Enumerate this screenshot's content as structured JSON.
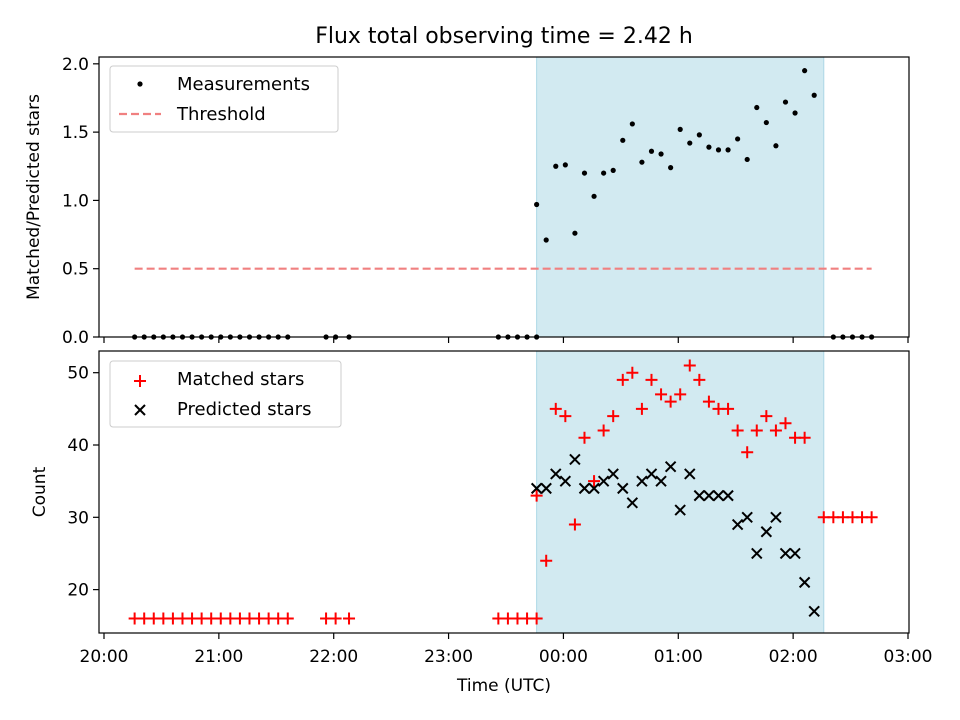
{
  "figure": {
    "title": "Flux total observing time = 2.42 h",
    "xlabel": "Time (UTC)"
  },
  "colors": {
    "measurement": "#000000",
    "threshold": "#f08080",
    "matched": "#ff0000",
    "predicted": "#000000",
    "shade": "#add8e6"
  },
  "chart_data": [
    {
      "type": "scatter",
      "ylabel": "Matched/Predicted stars",
      "ylim": [
        0,
        2.05
      ],
      "yticks": [
        0.0,
        0.5,
        1.0,
        1.5,
        2.0
      ],
      "xlim": [
        "20:00",
        "03:00"
      ],
      "grid": false,
      "legend": "top-left",
      "shaded_region": {
        "from": "23:46",
        "to": "02:16"
      },
      "series": [
        {
          "name": "Measurements",
          "marker": "dot",
          "points": [
            [
              "20:16",
              0
            ],
            [
              "20:21",
              0
            ],
            [
              "20:26",
              0
            ],
            [
              "20:31",
              0
            ],
            [
              "20:36",
              0
            ],
            [
              "20:41",
              0
            ],
            [
              "20:46",
              0
            ],
            [
              "20:51",
              0
            ],
            [
              "20:56",
              0
            ],
            [
              "21:01",
              0
            ],
            [
              "21:06",
              0
            ],
            [
              "21:11",
              0
            ],
            [
              "21:16",
              0
            ],
            [
              "21:21",
              0
            ],
            [
              "21:26",
              0
            ],
            [
              "21:31",
              0
            ],
            [
              "21:36",
              0
            ],
            [
              "21:56",
              0
            ],
            [
              "22:01",
              0
            ],
            [
              "22:08",
              0
            ],
            [
              "23:26",
              0
            ],
            [
              "23:31",
              0
            ],
            [
              "23:36",
              0
            ],
            [
              "23:41",
              0
            ],
            [
              "23:46",
              0
            ],
            [
              "23:46",
              0.97
            ],
            [
              "23:51",
              0.71
            ],
            [
              "23:56",
              1.25
            ],
            [
              "00:01",
              1.26
            ],
            [
              "00:06",
              0.76
            ],
            [
              "00:11",
              1.2
            ],
            [
              "00:16",
              1.03
            ],
            [
              "00:21",
              1.2
            ],
            [
              "00:26",
              1.22
            ],
            [
              "00:31",
              1.44
            ],
            [
              "00:36",
              1.56
            ],
            [
              "00:41",
              1.28
            ],
            [
              "00:46",
              1.36
            ],
            [
              "00:51",
              1.34
            ],
            [
              "00:56",
              1.24
            ],
            [
              "01:01",
              1.52
            ],
            [
              "01:06",
              1.42
            ],
            [
              "01:11",
              1.48
            ],
            [
              "01:16",
              1.39
            ],
            [
              "01:21",
              1.37
            ],
            [
              "01:26",
              1.37
            ],
            [
              "01:31",
              1.45
            ],
            [
              "01:36",
              1.3
            ],
            [
              "01:41",
              1.68
            ],
            [
              "01:46",
              1.57
            ],
            [
              "01:51",
              1.4
            ],
            [
              "01:56",
              1.72
            ],
            [
              "02:01",
              1.64
            ],
            [
              "02:06",
              1.95
            ],
            [
              "02:11",
              1.77
            ],
            [
              "02:21",
              0
            ],
            [
              "02:26",
              0
            ],
            [
              "02:31",
              0
            ],
            [
              "02:36",
              0
            ],
            [
              "02:41",
              0
            ]
          ]
        },
        {
          "name": "Threshold",
          "style": "dashed-line",
          "points": [
            [
              "20:16",
              0.5
            ],
            [
              "02:41",
              0.5
            ]
          ]
        }
      ]
    },
    {
      "type": "scatter",
      "ylabel": "Count",
      "ylim": [
        14,
        53
      ],
      "yticks": [
        20,
        30,
        40,
        50
      ],
      "xlim": [
        "20:00",
        "03:00"
      ],
      "xticks": [
        "20:00",
        "21:00",
        "22:00",
        "23:00",
        "00:00",
        "01:00",
        "02:00",
        "03:00"
      ],
      "grid": false,
      "legend": "top-left",
      "shaded_region": {
        "from": "23:46",
        "to": "02:16"
      },
      "series": [
        {
          "name": "Matched stars",
          "marker": "plus",
          "points": [
            [
              "20:16",
              16
            ],
            [
              "20:21",
              16
            ],
            [
              "20:26",
              16
            ],
            [
              "20:31",
              16
            ],
            [
              "20:36",
              16
            ],
            [
              "20:41",
              16
            ],
            [
              "20:46",
              16
            ],
            [
              "20:51",
              16
            ],
            [
              "20:56",
              16
            ],
            [
              "21:01",
              16
            ],
            [
              "21:06",
              16
            ],
            [
              "21:11",
              16
            ],
            [
              "21:16",
              16
            ],
            [
              "21:21",
              16
            ],
            [
              "21:26",
              16
            ],
            [
              "21:31",
              16
            ],
            [
              "21:36",
              16
            ],
            [
              "21:56",
              16
            ],
            [
              "22:01",
              16
            ],
            [
              "22:08",
              16
            ],
            [
              "23:26",
              16
            ],
            [
              "23:31",
              16
            ],
            [
              "23:36",
              16
            ],
            [
              "23:41",
              16
            ],
            [
              "23:46",
              16
            ],
            [
              "23:46",
              33
            ],
            [
              "23:51",
              24
            ],
            [
              "23:56",
              45
            ],
            [
              "00:01",
              44
            ],
            [
              "00:06",
              29
            ],
            [
              "00:11",
              41
            ],
            [
              "00:16",
              35
            ],
            [
              "00:21",
              42
            ],
            [
              "00:26",
              44
            ],
            [
              "00:31",
              49
            ],
            [
              "00:36",
              50
            ],
            [
              "00:41",
              45
            ],
            [
              "00:46",
              49
            ],
            [
              "00:51",
              47
            ],
            [
              "00:56",
              46
            ],
            [
              "01:01",
              47
            ],
            [
              "01:06",
              51
            ],
            [
              "01:11",
              49
            ],
            [
              "01:16",
              46
            ],
            [
              "01:21",
              45
            ],
            [
              "01:26",
              45
            ],
            [
              "01:31",
              42
            ],
            [
              "01:36",
              39
            ],
            [
              "01:41",
              42
            ],
            [
              "01:46",
              44
            ],
            [
              "01:51",
              42
            ],
            [
              "01:56",
              43
            ],
            [
              "02:01",
              41
            ],
            [
              "02:06",
              41
            ],
            [
              "02:16",
              30
            ],
            [
              "02:21",
              30
            ],
            [
              "02:26",
              30
            ],
            [
              "02:31",
              30
            ],
            [
              "02:36",
              30
            ],
            [
              "02:41",
              30
            ]
          ]
        },
        {
          "name": "Predicted stars",
          "marker": "x",
          "points": [
            [
              "23:46",
              34
            ],
            [
              "23:51",
              34
            ],
            [
              "23:56",
              36
            ],
            [
              "00:01",
              35
            ],
            [
              "00:06",
              38
            ],
            [
              "00:11",
              34
            ],
            [
              "00:16",
              34
            ],
            [
              "00:21",
              35
            ],
            [
              "00:26",
              36
            ],
            [
              "00:31",
              34
            ],
            [
              "00:36",
              32
            ],
            [
              "00:41",
              35
            ],
            [
              "00:46",
              36
            ],
            [
              "00:51",
              35
            ],
            [
              "00:56",
              37
            ],
            [
              "01:01",
              31
            ],
            [
              "01:06",
              36
            ],
            [
              "01:11",
              33
            ],
            [
              "01:16",
              33
            ],
            [
              "01:21",
              33
            ],
            [
              "01:26",
              33
            ],
            [
              "01:31",
              29
            ],
            [
              "01:36",
              30
            ],
            [
              "01:41",
              25
            ],
            [
              "01:46",
              28
            ],
            [
              "01:51",
              30
            ],
            [
              "01:56",
              25
            ],
            [
              "02:01",
              25
            ],
            [
              "02:06",
              21
            ],
            [
              "02:11",
              17
            ]
          ]
        }
      ]
    }
  ]
}
